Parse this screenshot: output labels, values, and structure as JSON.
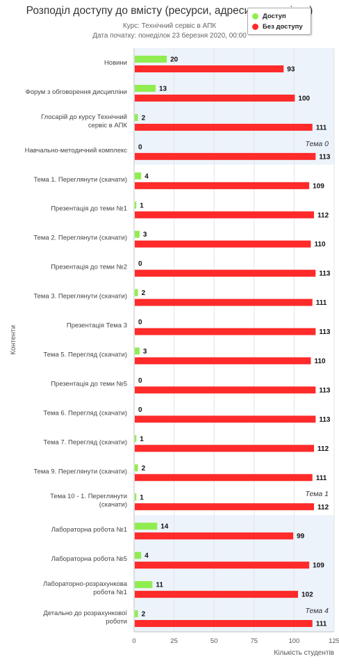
{
  "chart_data": {
    "type": "bar",
    "orientation": "horizontal",
    "title": "Розподіл доступу до вмісту (ресурси, адреси по сторінки)",
    "subtitle_lines": [
      "Курс: Технічний сервіс в АПК",
      "Дата початку: понеділок 23 березня 2020, 00:00"
    ],
    "xlabel": "Кількість студентів",
    "ylabel": "Контенти",
    "xlim": [
      0,
      125
    ],
    "xticks": [
      "0",
      "25",
      "50",
      "75",
      "100",
      "125"
    ],
    "grid": true,
    "legend_position": "top-right",
    "categories": [
      "Новини",
      "Форум з обговорення дисципліни",
      "Глосарій до курсу Технічний сервіс в АПК",
      "Навчально-методичний комплекс",
      "Тема 1. Переглянути (скачати)",
      "Презентація до теми №1",
      "Тема 2. Переглянути (скачати)",
      "Презентація до теми №2",
      "Тема 3. Переглянути (скачати)",
      "Презентація Тема 3",
      "Тема 5. Перегляд (скачати)",
      "Презентація до теми №5",
      "Тема 6. Перегляд (скачати)",
      "Тема 7. Перегляд (скачати)",
      "Тема 9. Переглянути (скачати)",
      "Тема 10 - 1. Переглянути (скачати)",
      "Лабораторна робота №1",
      "Лабораторна робота №5",
      "Лабораторно-розрахункова робота №1",
      "Детально до розрахункової роботи"
    ],
    "series": [
      {
        "name": "Доступ",
        "color": "#90ed50",
        "values": [
          20,
          13,
          2,
          0,
          4,
          1,
          3,
          0,
          2,
          0,
          3,
          0,
          0,
          1,
          2,
          1,
          14,
          4,
          11,
          2
        ]
      },
      {
        "name": "Без доступу",
        "color": "#ff2a2a",
        "values": [
          93,
          100,
          111,
          113,
          109,
          112,
          110,
          113,
          111,
          113,
          110,
          113,
          113,
          112,
          111,
          112,
          99,
          109,
          102,
          111
        ]
      }
    ],
    "bands": [
      {
        "label": "Тема 0",
        "from": 0,
        "to": 3,
        "color": "#edf3fb"
      },
      {
        "label": "Тема 1",
        "from": 4,
        "to": 15,
        "color": "#ffffff"
      },
      {
        "label": "Тема 4",
        "from": 16,
        "to": 19,
        "color": "#edf3fb"
      }
    ]
  }
}
